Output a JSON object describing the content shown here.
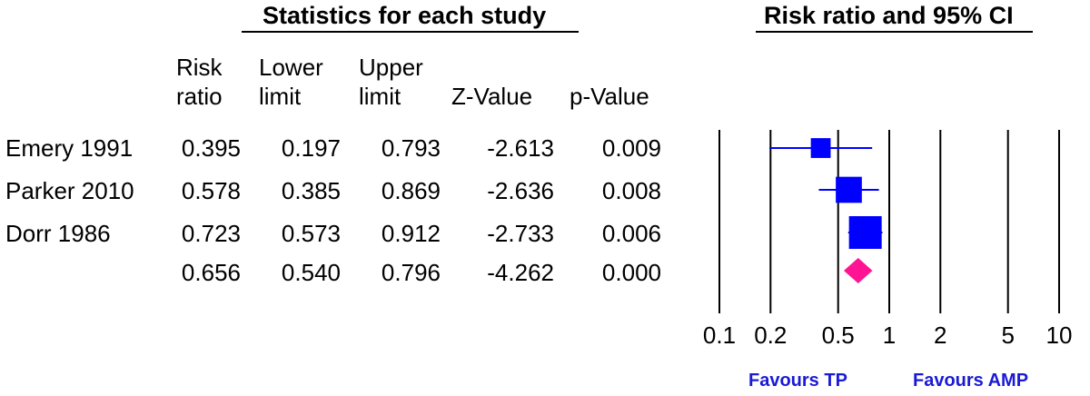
{
  "headers": {
    "stats_title": "Statistics for each study",
    "plot_title": "Risk ratio and 95% CI",
    "columns": [
      {
        "line1": "Risk",
        "line2": "ratio"
      },
      {
        "line1": "Lower",
        "line2": "limit"
      },
      {
        "line1": "Upper",
        "line2": "limit"
      },
      {
        "line1": "",
        "line2": "Z-Value"
      },
      {
        "line1": "",
        "line2": "p-Value"
      }
    ]
  },
  "table": {
    "rows": [
      {
        "study": "Emery 1991",
        "rr": "0.395",
        "lower": "0.197",
        "upper": "0.793",
        "z": "-2.613",
        "p": "0.009"
      },
      {
        "study": "Parker 2010",
        "rr": "0.578",
        "lower": "0.385",
        "upper": "0.869",
        "z": "-2.636",
        "p": "0.008"
      },
      {
        "study": "Dorr 1986",
        "rr": "0.723",
        "lower": "0.573",
        "upper": "0.912",
        "z": "-2.733",
        "p": "0.006"
      },
      {
        "study": "",
        "rr": "0.656",
        "lower": "0.540",
        "upper": "0.796",
        "z": "-4.262",
        "p": "0.000"
      }
    ]
  },
  "favours": {
    "left": "Favours TP",
    "right": "Favours AMP",
    "color": "#1a1ad6"
  },
  "chart_data": {
    "type": "forest",
    "scale": "log",
    "title": "Risk ratio and 95% CI",
    "xlim": [
      0.1,
      10
    ],
    "ticks": [
      0.1,
      0.2,
      0.5,
      1,
      2,
      5,
      10
    ],
    "tick_labels": [
      "0.1",
      "0.2",
      "0.5",
      "1",
      "2",
      "5",
      "10"
    ],
    "studies": [
      {
        "name": "Emery 1991",
        "rr": 0.395,
        "lower": 0.197,
        "upper": 0.793,
        "weight": 0.12
      },
      {
        "name": "Parker 2010",
        "rr": 0.578,
        "lower": 0.385,
        "upper": 0.869,
        "weight": 0.3
      },
      {
        "name": "Dorr 1986",
        "rr": 0.723,
        "lower": 0.573,
        "upper": 0.912,
        "weight": 0.58
      }
    ],
    "summary": {
      "rr": 0.656,
      "lower": 0.54,
      "upper": 0.796
    },
    "colors": {
      "study": "#0000ff",
      "summary": "#ff1493",
      "gridline": "#000000"
    }
  }
}
